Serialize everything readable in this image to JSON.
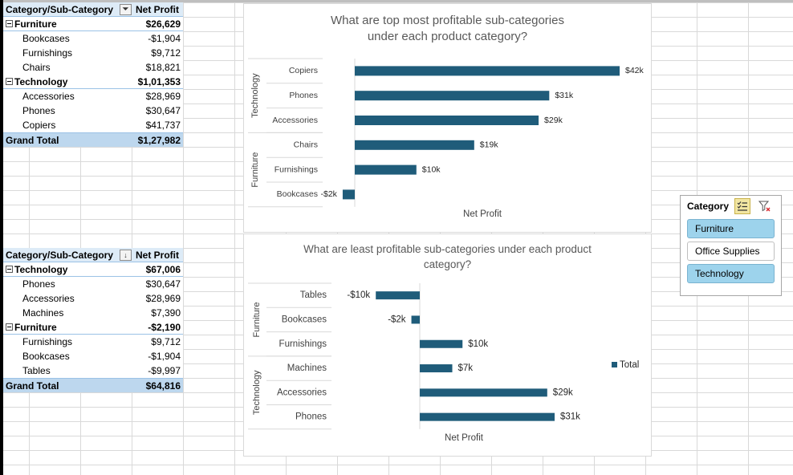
{
  "pivot_top": {
    "header": {
      "row_label": "Category/Sub-Category",
      "value_label": "Net Profit"
    },
    "rows": [
      {
        "kind": "cat",
        "label": "Furniture",
        "value": "$26,629"
      },
      {
        "kind": "sub",
        "label": "Bookcases",
        "value": "-$1,904"
      },
      {
        "kind": "sub",
        "label": "Furnishings",
        "value": "$9,712"
      },
      {
        "kind": "sub",
        "label": "Chairs",
        "value": "$18,821"
      },
      {
        "kind": "cat",
        "label": "Technology",
        "value": "$1,01,353"
      },
      {
        "kind": "sub",
        "label": "Accessories",
        "value": "$28,969"
      },
      {
        "kind": "sub",
        "label": "Phones",
        "value": "$30,647"
      },
      {
        "kind": "sub",
        "label": "Copiers",
        "value": "$41,737"
      }
    ],
    "total": {
      "label": "Grand Total",
      "value": "$1,27,982"
    }
  },
  "pivot_bottom": {
    "header": {
      "row_label": "Category/Sub-Category",
      "value_label": "Net Profit"
    },
    "rows": [
      {
        "kind": "cat",
        "label": "Technology",
        "value": "$67,006"
      },
      {
        "kind": "sub",
        "label": "Phones",
        "value": "$30,647"
      },
      {
        "kind": "sub",
        "label": "Accessories",
        "value": "$28,969"
      },
      {
        "kind": "sub",
        "label": "Machines",
        "value": "$7,390"
      },
      {
        "kind": "cat",
        "label": "Furniture",
        "value": "-$2,190"
      },
      {
        "kind": "sub",
        "label": "Furnishings",
        "value": "$9,712"
      },
      {
        "kind": "sub",
        "label": "Bookcases",
        "value": "-$1,904"
      },
      {
        "kind": "sub",
        "label": "Tables",
        "value": "-$9,997"
      }
    ],
    "total": {
      "label": "Grand Total",
      "value": "$64,816"
    }
  },
  "chart_data": [
    {
      "type": "bar",
      "orientation": "horizontal",
      "title": "What are top most profitable sub-categories under each product category?",
      "xlabel": "Net Profit",
      "bar_color": "#1f5c7a",
      "groups": [
        {
          "name": "Technology",
          "categories": [
            "Copiers",
            "Phones",
            "Accessories"
          ],
          "values": [
            41737,
            30647,
            28969
          ],
          "labels": [
            "$42k",
            "$31k",
            "$29k"
          ]
        },
        {
          "name": "Furniture",
          "categories": [
            "Chairs",
            "Furnishings",
            "Bookcases"
          ],
          "values": [
            18821,
            9712,
            -1904
          ],
          "labels": [
            "$19k",
            "$10k",
            "-$2k"
          ]
        }
      ]
    },
    {
      "type": "bar",
      "orientation": "horizontal",
      "title": "What are least profitable sub-categories under each product category?",
      "xlabel": "Net Profit",
      "legend": [
        "Total"
      ],
      "legend_position": "right",
      "bar_color": "#1f5c7a",
      "groups": [
        {
          "name": "Furniture",
          "categories": [
            "Tables",
            "Bookcases",
            "Furnishings"
          ],
          "values": [
            -9997,
            -1904,
            9712
          ],
          "labels": [
            "-$10k",
            "-$2k",
            "$10k"
          ]
        },
        {
          "name": "Technology",
          "categories": [
            "Machines",
            "Accessories",
            "Phones"
          ],
          "values": [
            7390,
            28969,
            30647
          ],
          "labels": [
            "$7k",
            "$29k",
            "$31k"
          ]
        }
      ]
    }
  ],
  "slicer": {
    "title": "Category",
    "multiselect_icon": "multiselect-icon",
    "clear_filter_icon": "clear-filter-icon",
    "items": [
      {
        "label": "Furniture",
        "selected": true
      },
      {
        "label": "Office Supplies",
        "selected": false
      },
      {
        "label": "Technology",
        "selected": true
      }
    ],
    "selected_color": "#9dd3ec"
  }
}
